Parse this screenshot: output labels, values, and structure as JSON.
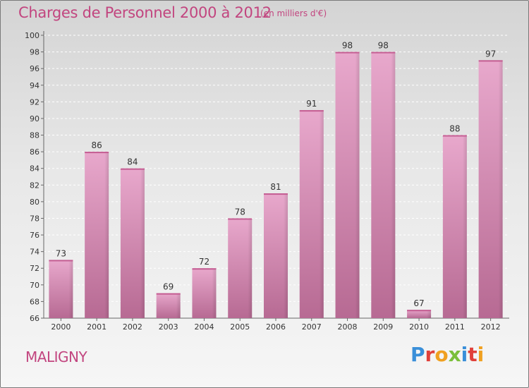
{
  "header": {
    "title": "Charges de Personnel 2000 à 2012",
    "subtitle": "(en milliers d'€)"
  },
  "footer": {
    "place": "MALIGNY",
    "logo": "Proxiti",
    "logo_colors": [
      "#3a8fd9",
      "#e0403a",
      "#f0a020",
      "#7abf3a",
      "#3a8fd9",
      "#e0403a",
      "#f0a020"
    ]
  },
  "chart_data": {
    "type": "bar",
    "categories": [
      "2000",
      "2001",
      "2002",
      "2003",
      "2004",
      "2005",
      "2006",
      "2007",
      "2008",
      "2009",
      "2010",
      "2011",
      "2012"
    ],
    "values": [
      73,
      86,
      84,
      69,
      72,
      78,
      81,
      91,
      98,
      98,
      67,
      88,
      97
    ],
    "ylim": [
      66,
      100
    ],
    "yticks": [
      66,
      68,
      70,
      72,
      74,
      76,
      78,
      80,
      82,
      84,
      86,
      88,
      90,
      92,
      94,
      96,
      98,
      100
    ],
    "grid": true,
    "bar_color": "#cc6f9f"
  }
}
